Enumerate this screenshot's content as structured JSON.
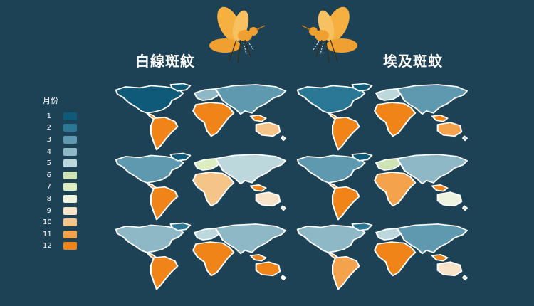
{
  "titles": {
    "left": "白線斑紋",
    "right": "埃及斑蚊"
  },
  "legend": {
    "title": "月份",
    "items": [
      {
        "label": "1",
        "color": "#0e5a78"
      },
      {
        "label": "2",
        "color": "#2a7895"
      },
      {
        "label": "3",
        "color": "#5f99b0"
      },
      {
        "label": "4",
        "color": "#8fb8c7"
      },
      {
        "label": "5",
        "color": "#bcd8dc"
      },
      {
        "label": "6",
        "color": "#cfe4b4"
      },
      {
        "label": "7",
        "color": "#dcedc0"
      },
      {
        "label": "8",
        "color": "#eef3e0"
      },
      {
        "label": "9",
        "color": "#f6e3c8"
      },
      {
        "label": "10",
        "color": "#f5c488"
      },
      {
        "label": "11",
        "color": "#f4a24b"
      },
      {
        "label": "12",
        "color": "#f08418"
      }
    ]
  },
  "colors": {
    "background": "#1e4255",
    "mosquito_body": "#f0a030",
    "mosquito_wing": "#f5b040",
    "outline": "#ffffff"
  },
  "icons": [
    "mosquito-icon-left",
    "mosquito-icon-right"
  ]
}
